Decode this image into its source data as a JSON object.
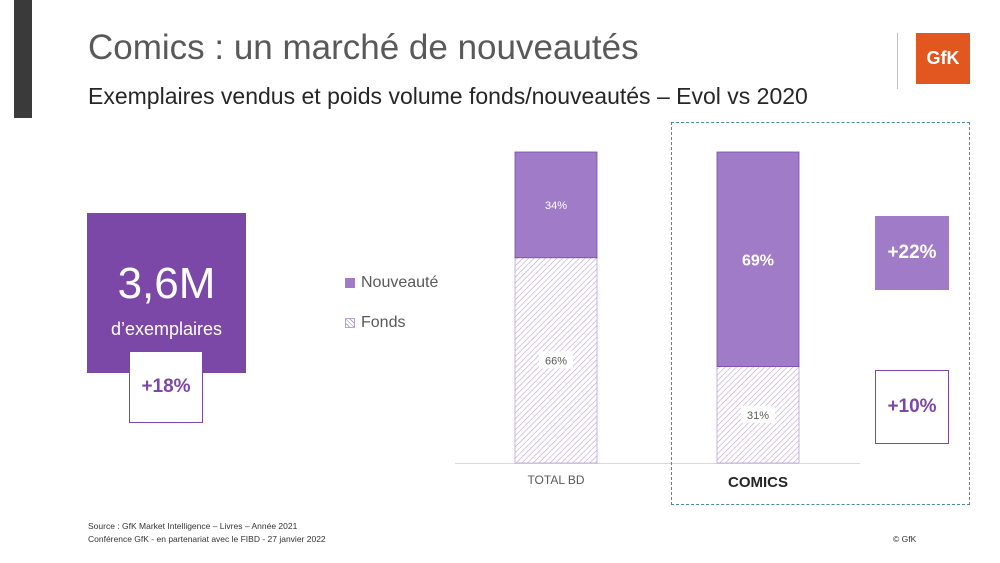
{
  "header": {
    "title": "Comics : un marché de nouveautés",
    "subtitle": "Exemplaires vendus et poids volume fonds/nouveautés – Evol vs 2020",
    "logo_text": "GfK"
  },
  "kpi": {
    "value": "3,6M",
    "label": "d’exemplaires",
    "evolution": "+18%"
  },
  "legend": {
    "nouveaute": "Nouveauté",
    "fonds": "Fonds"
  },
  "colors": {
    "accent_dark": "#7b48a8",
    "nouveaute": "#a07cc8",
    "fonds_hatch": "#b9a2d6",
    "logo": "#e2561f",
    "highlight_border": "#4e8a9a"
  },
  "chart_data": {
    "type": "bar",
    "stacked": true,
    "categories": [
      "TOTAL BD",
      "COMICS"
    ],
    "series": [
      {
        "name": "Fonds",
        "values": [
          66,
          31
        ],
        "labels": [
          "66%",
          "31%"
        ]
      },
      {
        "name": "Nouveauté",
        "values": [
          34,
          69
        ],
        "labels": [
          "34%",
          "69%"
        ]
      }
    ],
    "ylim": [
      0,
      100
    ]
  },
  "evolutions": {
    "nouveaute": "+22%",
    "fonds": "+10%"
  },
  "footer": {
    "source": "Source : GfK Market Intelligence – Livres – Année 2021",
    "conference": "Conférence GfK - en partenariat avec le FIBD - 27 janvier 2022",
    "copyright": "© GfK"
  }
}
